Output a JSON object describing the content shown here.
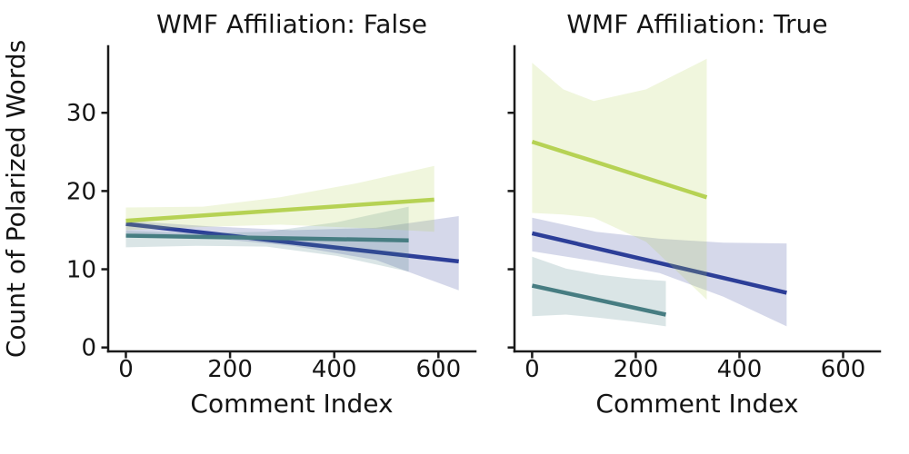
{
  "chart_data": [
    {
      "type": "line",
      "subtype": "regression-lines-with-confidence-bands",
      "title": "WMF Affiliation: False",
      "xlabel": "Comment Index",
      "ylabel": "Count of Polarized Words",
      "xlim": [
        -34,
        671
      ],
      "ylim": [
        -0.5,
        38.5
      ],
      "x_ticks": [
        0,
        200,
        400,
        600
      ],
      "y_ticks": [
        0,
        10,
        20,
        30
      ],
      "show_y_tick_labels": true,
      "grid": false,
      "legend": "none",
      "band_alpha": 0.2,
      "series": [
        {
          "name": "blue",
          "color": "#2c3e98",
          "line": {
            "x": [
              0,
              639
            ],
            "y": [
              15.8,
              11.0
            ]
          },
          "ci_band": {
            "x": [
              0,
              160,
              320,
              480,
              639
            ],
            "hi": [
              16.2,
              15.5,
              15.0,
              15.3,
              16.8
            ],
            "lo": [
              14.6,
              14.0,
              13.0,
              11.2,
              7.3
            ]
          }
        },
        {
          "name": "teal",
          "color": "#477d82",
          "line": {
            "x": [
              0,
              543
            ],
            "y": [
              14.3,
              13.7
            ]
          },
          "ci_band": {
            "x": [
              0,
              135,
              270,
              405,
              543
            ],
            "hi": [
              14.9,
              14.6,
              14.8,
              16.0,
              18.0
            ],
            "lo": [
              12.8,
              13.0,
              12.9,
              11.7,
              9.7
            ]
          }
        },
        {
          "name": "green",
          "color": "#b6d254",
          "line": {
            "x": [
              0,
              592
            ],
            "y": [
              16.2,
              18.9
            ]
          },
          "ci_band": {
            "x": [
              0,
              148,
              296,
              444,
              592
            ],
            "hi": [
              17.9,
              18.0,
              19.2,
              21.0,
              23.2
            ],
            "lo": [
              15.0,
              15.4,
              15.7,
              15.3,
              14.8
            ]
          }
        }
      ]
    },
    {
      "type": "line",
      "subtype": "regression-lines-with-confidence-bands",
      "title": "WMF Affiliation: True",
      "xlabel": "Comment Index",
      "ylabel": "",
      "xlim": [
        -34,
        671
      ],
      "ylim": [
        -0.5,
        38.5
      ],
      "x_ticks": [
        0,
        200,
        400,
        600
      ],
      "y_ticks": [
        0,
        10,
        20,
        30
      ],
      "show_y_tick_labels": false,
      "grid": false,
      "legend": "none",
      "band_alpha": 0.2,
      "series": [
        {
          "name": "blue",
          "color": "#2c3e98",
          "line": {
            "x": [
              0,
              491
            ],
            "y": [
              14.6,
              7.0
            ]
          },
          "ci_band": {
            "x": [
              0,
              123,
              246,
              369,
              491
            ],
            "hi": [
              16.6,
              14.8,
              13.9,
              13.4,
              13.3
            ],
            "lo": [
              12.3,
              11.0,
              9.5,
              6.5,
              2.7
            ]
          }
        },
        {
          "name": "teal",
          "color": "#477d82",
          "line": {
            "x": [
              0,
              258
            ],
            "y": [
              7.9,
              4.2
            ]
          },
          "ci_band": {
            "x": [
              0,
              65,
              130,
              195,
              258
            ],
            "hi": [
              11.6,
              10.1,
              9.3,
              8.8,
              8.5
            ],
            "lo": [
              4.0,
              4.2,
              3.8,
              3.3,
              2.7
            ]
          }
        },
        {
          "name": "green",
          "color": "#b6d254",
          "line": {
            "x": [
              0,
              337
            ],
            "y": [
              26.3,
              19.2
            ]
          },
          "ci_band": {
            "x": [
              0,
              60,
              119,
              220,
              337
            ],
            "hi": [
              36.4,
              33.0,
              31.5,
              33.0,
              36.9
            ],
            "lo": [
              17.2,
              17.0,
              16.6,
              13.5,
              6.1
            ]
          }
        }
      ]
    }
  ],
  "style": {
    "text_color": "#151515",
    "axis_color": "#1a1a1a",
    "background": "#ffffff"
  }
}
